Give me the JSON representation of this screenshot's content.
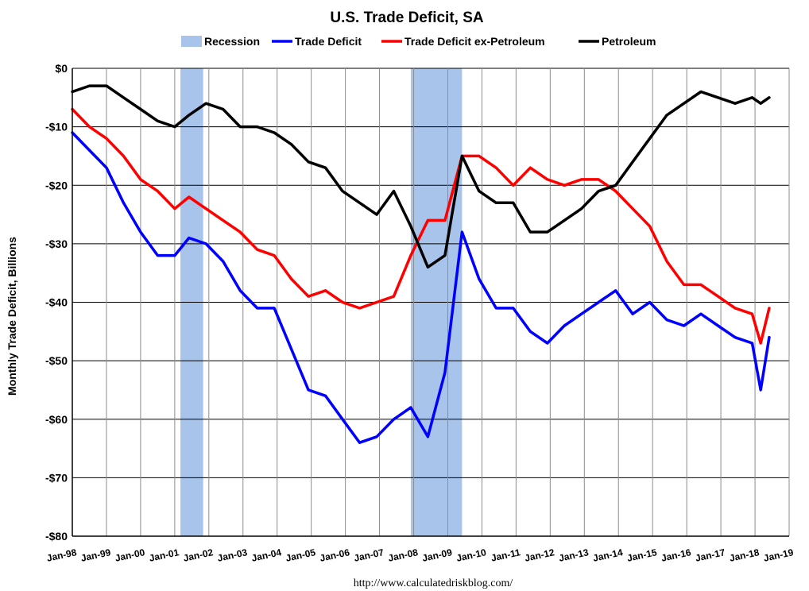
{
  "chart_data": {
    "type": "line",
    "title": "U.S. Trade Deficit, SA",
    "ylabel": "Monthly Trade Deficit, Billions",
    "xlabel": "",
    "source": "http://www.calculatedriskblog.com/",
    "ylim": [
      -80,
      0
    ],
    "y_ticks": [
      0,
      -10,
      -20,
      -30,
      -40,
      -50,
      -60,
      -70,
      -80
    ],
    "y_tick_labels": [
      "$0",
      "-$10",
      "-$20",
      "-$30",
      "-$40",
      "-$50",
      "-$60",
      "-$70",
      "-$80"
    ],
    "x_ticks": [
      "Jan-98",
      "Jan-99",
      "Jan-00",
      "Jan-01",
      "Jan-02",
      "Jan-03",
      "Jan-04",
      "Jan-05",
      "Jan-06",
      "Jan-07",
      "Jan-08",
      "Jan-09",
      "Jan-10",
      "Jan-11",
      "Jan-12",
      "Jan-13",
      "Jan-14",
      "Jan-15",
      "Jan-16",
      "Jan-17",
      "Jan-18",
      "Jan-19"
    ],
    "xlim": [
      "1998-01",
      "2019-01"
    ],
    "grid": "horizontal and vertical",
    "legend": "top-center",
    "recessions": [
      {
        "start": "2001-03",
        "end": "2001-11"
      },
      {
        "start": "2007-12",
        "end": "2009-06"
      }
    ],
    "legend_entries": [
      {
        "name": "Recession",
        "color": "#A9C4EB"
      },
      {
        "name": "Trade Deficit",
        "color": "#0000FF"
      },
      {
        "name": "Trade Deficit ex-Petroleum",
        "color": "#FF0000"
      },
      {
        "name": "Petroleum",
        "color": "#000000"
      }
    ],
    "series": [
      {
        "name": "Trade Deficit",
        "color": "#0000FF",
        "points": [
          [
            "1998-01",
            -11
          ],
          [
            "1998-07",
            -14
          ],
          [
            "1999-01",
            -17
          ],
          [
            "1999-07",
            -23
          ],
          [
            "2000-01",
            -28
          ],
          [
            "2000-07",
            -32
          ],
          [
            "2001-01",
            -32
          ],
          [
            "2001-06",
            -29
          ],
          [
            "2001-12",
            -30
          ],
          [
            "2002-06",
            -33
          ],
          [
            "2002-12",
            -38
          ],
          [
            "2003-06",
            -41
          ],
          [
            "2003-12",
            -41
          ],
          [
            "2004-06",
            -48
          ],
          [
            "2004-12",
            -55
          ],
          [
            "2005-06",
            -56
          ],
          [
            "2005-12",
            -60
          ],
          [
            "2006-06",
            -64
          ],
          [
            "2006-12",
            -63
          ],
          [
            "2007-06",
            -60
          ],
          [
            "2007-12",
            -58
          ],
          [
            "2008-06",
            -63
          ],
          [
            "2008-12",
            -52
          ],
          [
            "2009-06",
            -28
          ],
          [
            "2009-12",
            -36
          ],
          [
            "2010-06",
            -41
          ],
          [
            "2010-12",
            -41
          ],
          [
            "2011-06",
            -45
          ],
          [
            "2011-12",
            -47
          ],
          [
            "2012-06",
            -44
          ],
          [
            "2012-12",
            -42
          ],
          [
            "2013-06",
            -40
          ],
          [
            "2013-12",
            -38
          ],
          [
            "2014-06",
            -42
          ],
          [
            "2014-12",
            -40
          ],
          [
            "2015-06",
            -43
          ],
          [
            "2015-12",
            -44
          ],
          [
            "2016-06",
            -42
          ],
          [
            "2016-12",
            -44
          ],
          [
            "2017-06",
            -46
          ],
          [
            "2017-12",
            -47
          ],
          [
            "2018-03",
            -55
          ],
          [
            "2018-06",
            -46
          ]
        ]
      },
      {
        "name": "Trade Deficit ex-Petroleum",
        "color": "#FF0000",
        "points": [
          [
            "1998-01",
            -7
          ],
          [
            "1998-07",
            -10
          ],
          [
            "1999-01",
            -12
          ],
          [
            "1999-07",
            -15
          ],
          [
            "2000-01",
            -19
          ],
          [
            "2000-07",
            -21
          ],
          [
            "2001-01",
            -24
          ],
          [
            "2001-06",
            -22
          ],
          [
            "2001-12",
            -24
          ],
          [
            "2002-06",
            -26
          ],
          [
            "2002-12",
            -28
          ],
          [
            "2003-06",
            -31
          ],
          [
            "2003-12",
            -32
          ],
          [
            "2004-06",
            -36
          ],
          [
            "2004-12",
            -39
          ],
          [
            "2005-06",
            -38
          ],
          [
            "2005-12",
            -40
          ],
          [
            "2006-06",
            -41
          ],
          [
            "2006-12",
            -40
          ],
          [
            "2007-06",
            -39
          ],
          [
            "2007-12",
            -32
          ],
          [
            "2008-06",
            -26
          ],
          [
            "2008-12",
            -26
          ],
          [
            "2009-06",
            -15
          ],
          [
            "2009-12",
            -15
          ],
          [
            "2010-06",
            -17
          ],
          [
            "2010-12",
            -20
          ],
          [
            "2011-06",
            -17
          ],
          [
            "2011-12",
            -19
          ],
          [
            "2012-06",
            -20
          ],
          [
            "2012-12",
            -19
          ],
          [
            "2013-06",
            -19
          ],
          [
            "2013-12",
            -21
          ],
          [
            "2014-06",
            -24
          ],
          [
            "2014-12",
            -27
          ],
          [
            "2015-06",
            -33
          ],
          [
            "2015-12",
            -37
          ],
          [
            "2016-06",
            -37
          ],
          [
            "2016-12",
            -39
          ],
          [
            "2017-06",
            -41
          ],
          [
            "2017-12",
            -42
          ],
          [
            "2018-03",
            -47
          ],
          [
            "2018-06",
            -41
          ]
        ]
      },
      {
        "name": "Petroleum",
        "color": "#000000",
        "points": [
          [
            "1998-01",
            -4
          ],
          [
            "1998-07",
            -3
          ],
          [
            "1999-01",
            -3
          ],
          [
            "1999-07",
            -5
          ],
          [
            "2000-01",
            -7
          ],
          [
            "2000-07",
            -9
          ],
          [
            "2001-01",
            -10
          ],
          [
            "2001-06",
            -8
          ],
          [
            "2001-12",
            -6
          ],
          [
            "2002-06",
            -7
          ],
          [
            "2002-12",
            -10
          ],
          [
            "2003-06",
            -10
          ],
          [
            "2003-12",
            -11
          ],
          [
            "2004-06",
            -13
          ],
          [
            "2004-12",
            -16
          ],
          [
            "2005-06",
            -17
          ],
          [
            "2005-12",
            -21
          ],
          [
            "2006-06",
            -23
          ],
          [
            "2006-12",
            -25
          ],
          [
            "2007-06",
            -21
          ],
          [
            "2007-12",
            -27
          ],
          [
            "2008-06",
            -34
          ],
          [
            "2008-12",
            -32
          ],
          [
            "2009-06",
            -15
          ],
          [
            "2009-12",
            -21
          ],
          [
            "2010-06",
            -23
          ],
          [
            "2010-12",
            -23
          ],
          [
            "2011-06",
            -28
          ],
          [
            "2011-12",
            -28
          ],
          [
            "2012-06",
            -26
          ],
          [
            "2012-12",
            -24
          ],
          [
            "2013-06",
            -21
          ],
          [
            "2013-12",
            -20
          ],
          [
            "2014-06",
            -16
          ],
          [
            "2014-12",
            -12
          ],
          [
            "2015-06",
            -8
          ],
          [
            "2015-12",
            -6
          ],
          [
            "2016-06",
            -4
          ],
          [
            "2016-12",
            -5
          ],
          [
            "2017-06",
            -6
          ],
          [
            "2017-12",
            -5
          ],
          [
            "2018-03",
            -6
          ],
          [
            "2018-06",
            -5
          ]
        ]
      }
    ]
  }
}
